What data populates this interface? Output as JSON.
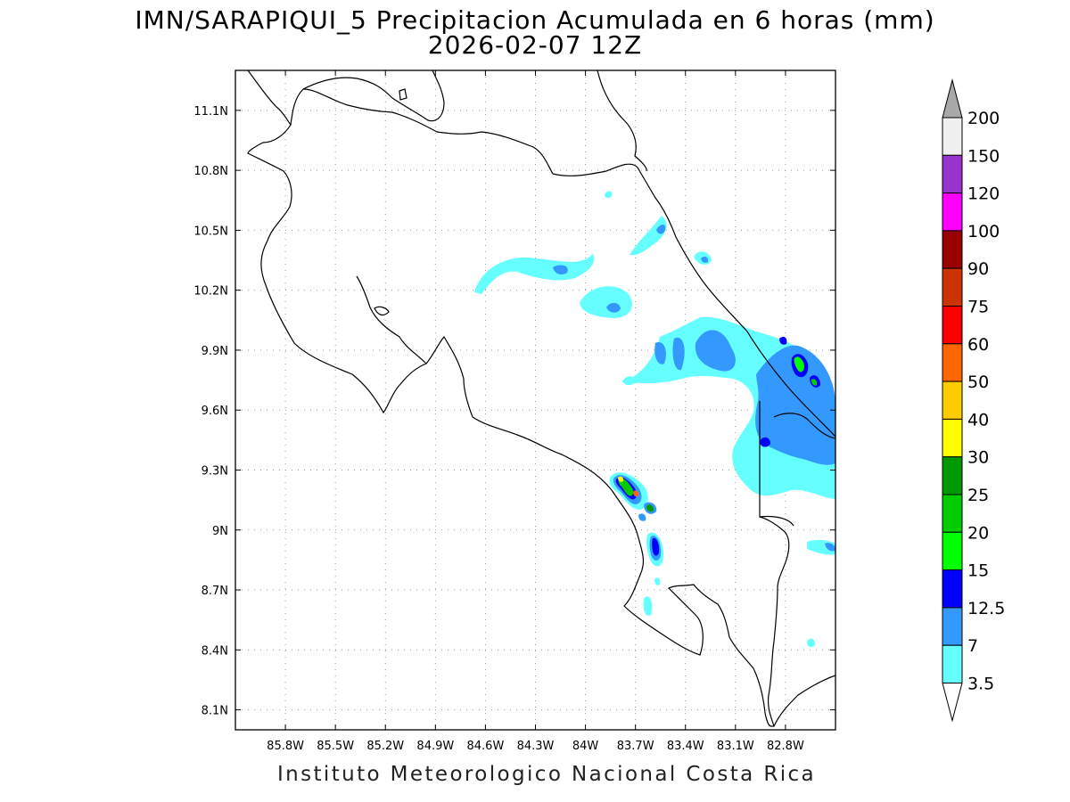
{
  "title": {
    "line1": "IMN/SARAPIQUI_5 Precipitacion Acumulada en 6 horas (mm)",
    "line2": "2026-02-07 12Z"
  },
  "credit": "Instituto Meteorologico Nacional Costa Rica",
  "map": {
    "region": "Costa Rica",
    "lon_range": [
      -86.1,
      -82.5
    ],
    "lat_range": [
      8.0,
      11.3
    ],
    "x_ticks": [
      "85.8W",
      "85.5W",
      "85.2W",
      "84.9W",
      "84.6W",
      "84.3W",
      "84W",
      "83.7W",
      "83.4W",
      "83.1W",
      "82.8W"
    ],
    "y_ticks": [
      "11.1N",
      "10.8N",
      "10.5N",
      "10.2N",
      "9.9N",
      "9.6N",
      "9.3N",
      "9N",
      "8.7N",
      "8.4N",
      "8.1N"
    ],
    "grid": "dotted"
  },
  "colorbar": {
    "levels": [
      "3.5",
      "7",
      "12.5",
      "15",
      "20",
      "25",
      "30",
      "40",
      "50",
      "60",
      "75",
      "90",
      "100",
      "120",
      "150",
      "200"
    ],
    "colors": [
      "#66ffff",
      "#3399ff",
      "#0000ff",
      "#00ff00",
      "#00cc00",
      "#009900",
      "#ffff00",
      "#ffcc00",
      "#ff6600",
      "#ff0000",
      "#cc3300",
      "#990000",
      "#ff00ff",
      "#9933cc",
      "#f0f0f0"
    ],
    "extend": "both",
    "over_color": "#a8a8a8",
    "under_color": "#ffffff"
  }
}
